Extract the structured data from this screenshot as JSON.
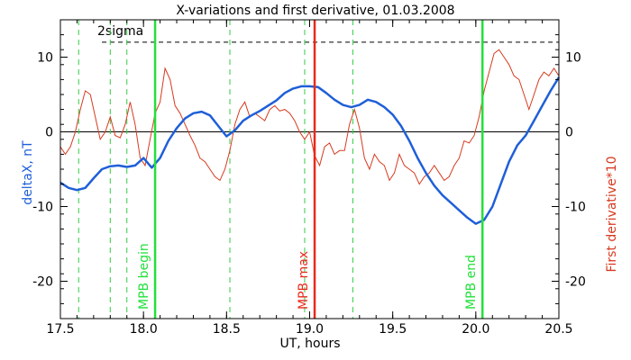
{
  "chart_data": {
    "type": "line",
    "title": "X-variations and first derivative, 01.03.2008",
    "xlabel": "UT, hours",
    "ylabel_left": "deltaX, nT",
    "ylabel_right": "First derivative*10",
    "xlim": [
      17.5,
      20.5
    ],
    "ylim": [
      -25,
      15
    ],
    "x_ticks": [
      17.5,
      18.0,
      18.5,
      19.0,
      19.5,
      20.0,
      20.5
    ],
    "x_tick_labels": [
      "17.5",
      "18.0",
      "18.5",
      "19.0",
      "19.5",
      "20.0",
      "20.5"
    ],
    "y_ticks": [
      10,
      0,
      -10,
      -20
    ],
    "y_tick_labels": [
      "10",
      "0",
      "-10",
      "-20"
    ],
    "colors": {
      "deltaX": "#1f5fd8",
      "derivative": "#d63a1f",
      "mpb": "#22e03a",
      "mpb_max": "#e82a1a",
      "sigma_guides": "#33cc44",
      "text_left": "#1f5fd8",
      "text_right": "#d63a1f",
      "axes": "#000000"
    },
    "two_sigma": {
      "label": "2sigma",
      "y": 12
    },
    "sigma_guides_x": [
      17.61,
      17.8,
      17.9,
      18.52,
      18.97,
      19.26
    ],
    "markers": [
      {
        "x": 18.07,
        "label": "MPB begin",
        "color": "#22e03a"
      },
      {
        "x": 19.03,
        "label": "MPB max",
        "color": "#e82a1a"
      },
      {
        "x": 20.04,
        "label": "MPB end",
        "color": "#22e03a"
      }
    ],
    "series": [
      {
        "name": "deltaX",
        "axis": "left",
        "x": [
          17.5,
          17.55,
          17.6,
          17.65,
          17.7,
          17.75,
          17.8,
          17.85,
          17.9,
          17.95,
          18.0,
          18.05,
          18.1,
          18.15,
          18.2,
          18.25,
          18.3,
          18.35,
          18.4,
          18.45,
          18.5,
          18.55,
          18.6,
          18.65,
          18.7,
          18.75,
          18.8,
          18.85,
          18.9,
          18.95,
          19.0,
          19.05,
          19.1,
          19.15,
          19.2,
          19.25,
          19.3,
          19.35,
          19.4,
          19.45,
          19.5,
          19.55,
          19.6,
          19.65,
          19.7,
          19.75,
          19.8,
          19.85,
          19.9,
          19.95,
          20.0,
          20.05,
          20.1,
          20.15,
          20.2,
          20.25,
          20.3,
          20.35,
          20.4,
          20.45,
          20.5
        ],
        "values": [
          -6.8,
          -7.5,
          -7.8,
          -7.5,
          -6.2,
          -5,
          -4.6,
          -4.5,
          -4.7,
          -4.5,
          -3.5,
          -4.8,
          -3.5,
          -1.2,
          0.5,
          1.8,
          2.5,
          2.7,
          2.2,
          0.8,
          -0.6,
          0.2,
          1.5,
          2.2,
          2.8,
          3.5,
          4.2,
          5.2,
          5.8,
          6.1,
          6.1,
          6.0,
          5.2,
          4.3,
          3.6,
          3.3,
          3.6,
          4.3,
          4.0,
          3.3,
          2.3,
          0.8,
          -1.2,
          -3.5,
          -5.5,
          -7.2,
          -8.5,
          -9.5,
          -10.5,
          -11.5,
          -12.3,
          -11.8,
          -10,
          -7,
          -4,
          -1.8,
          -0.5,
          1.5,
          3.5,
          5.5,
          7.3
        ]
      },
      {
        "name": "First derivative*10",
        "axis": "right",
        "x": [
          17.5,
          17.53,
          17.56,
          17.59,
          17.62,
          17.65,
          17.68,
          17.71,
          17.74,
          17.77,
          17.8,
          17.83,
          17.86,
          17.89,
          17.92,
          17.95,
          17.98,
          18.01,
          18.04,
          18.07,
          18.1,
          18.13,
          18.16,
          18.19,
          18.22,
          18.25,
          18.28,
          18.31,
          18.34,
          18.37,
          18.4,
          18.43,
          18.46,
          18.49,
          18.52,
          18.55,
          18.58,
          18.61,
          18.64,
          18.67,
          18.7,
          18.73,
          18.76,
          18.79,
          18.82,
          18.85,
          18.88,
          18.91,
          18.94,
          18.97,
          19.0,
          19.03,
          19.06,
          19.09,
          19.12,
          19.15,
          19.18,
          19.21,
          19.24,
          19.27,
          19.3,
          19.33,
          19.36,
          19.39,
          19.42,
          19.45,
          19.48,
          19.51,
          19.54,
          19.57,
          19.6,
          19.63,
          19.66,
          19.69,
          19.72,
          19.75,
          19.78,
          19.81,
          19.84,
          19.87,
          19.9,
          19.93,
          19.96,
          19.99,
          20.02,
          20.05,
          20.08,
          20.11,
          20.14,
          20.17,
          20.2,
          20.23,
          20.26,
          20.29,
          20.32,
          20.35,
          20.38,
          20.41,
          20.44,
          20.47,
          20.5
        ],
        "values": [
          -2,
          -3,
          -2,
          0,
          3,
          5.5,
          5,
          2,
          -1,
          0,
          2,
          -0.5,
          -0.8,
          1,
          4,
          1,
          -3.5,
          -4.5,
          -1,
          2.5,
          4,
          8.5,
          7,
          3.5,
          2.5,
          1,
          -0.5,
          -1.8,
          -3.5,
          -4,
          -5,
          -6,
          -6.5,
          -5,
          -2.5,
          1,
          3,
          4,
          2,
          2.5,
          2,
          1.5,
          3,
          3.5,
          2.8,
          3,
          2.5,
          1.5,
          0,
          -1,
          0,
          -3.2,
          -4.5,
          -2,
          -1.5,
          -3,
          -2.5,
          -2.5,
          1,
          3,
          0.5,
          -3.5,
          -5,
          -3,
          -4,
          -4.5,
          -6.5,
          -5.5,
          -3,
          -4.5,
          -5,
          -5.5,
          -7,
          -6,
          -5.5,
          -4.5,
          -5.5,
          -6.5,
          -6,
          -4.5,
          -3.5,
          -1.2,
          -1.5,
          -0.5,
          2,
          5.5,
          8,
          10.5,
          11,
          10,
          9,
          7.5,
          7,
          5,
          3,
          5,
          7,
          8,
          7.5,
          8.5,
          7.5
        ]
      }
    ]
  }
}
